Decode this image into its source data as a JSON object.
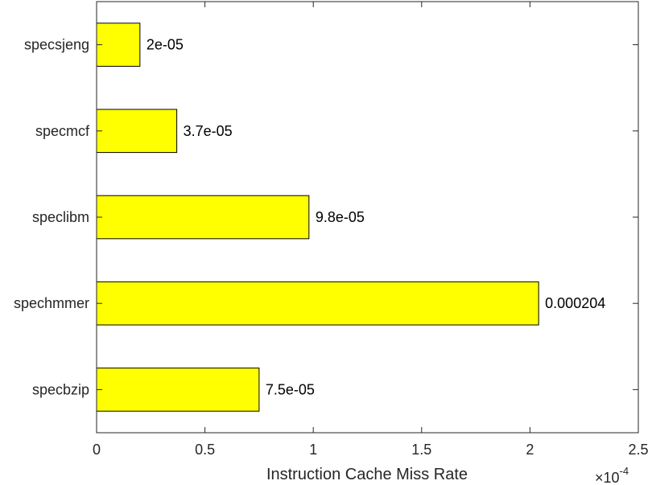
{
  "chart_data": {
    "type": "bar",
    "orientation": "horizontal",
    "categories": [
      "specbzip",
      "spechmmer",
      "speclibm",
      "specmcf",
      "specsjeng"
    ],
    "values": [
      7.5e-05,
      0.000204,
      9.8e-05,
      3.7e-05,
      2e-05
    ],
    "data_labels": [
      "7.5e-05",
      "0.000204",
      "9.8e-05",
      "3.7e-05",
      "2e-05"
    ],
    "xlabel": "Instruction Cache Miss Rate",
    "xlim": [
      0,
      0.00025
    ],
    "x_ticks": [
      0,
      5e-05,
      0.0001,
      0.00015,
      0.0002,
      0.00025
    ],
    "x_tick_labels": [
      "0",
      "0.5",
      "1",
      "1.5",
      "2",
      "2.5"
    ],
    "x_exponent": {
      "base": "×10",
      "power": "-4"
    },
    "bar_color": "#ffff00",
    "edge_color": "#000000",
    "grid": false,
    "legend": "none"
  }
}
